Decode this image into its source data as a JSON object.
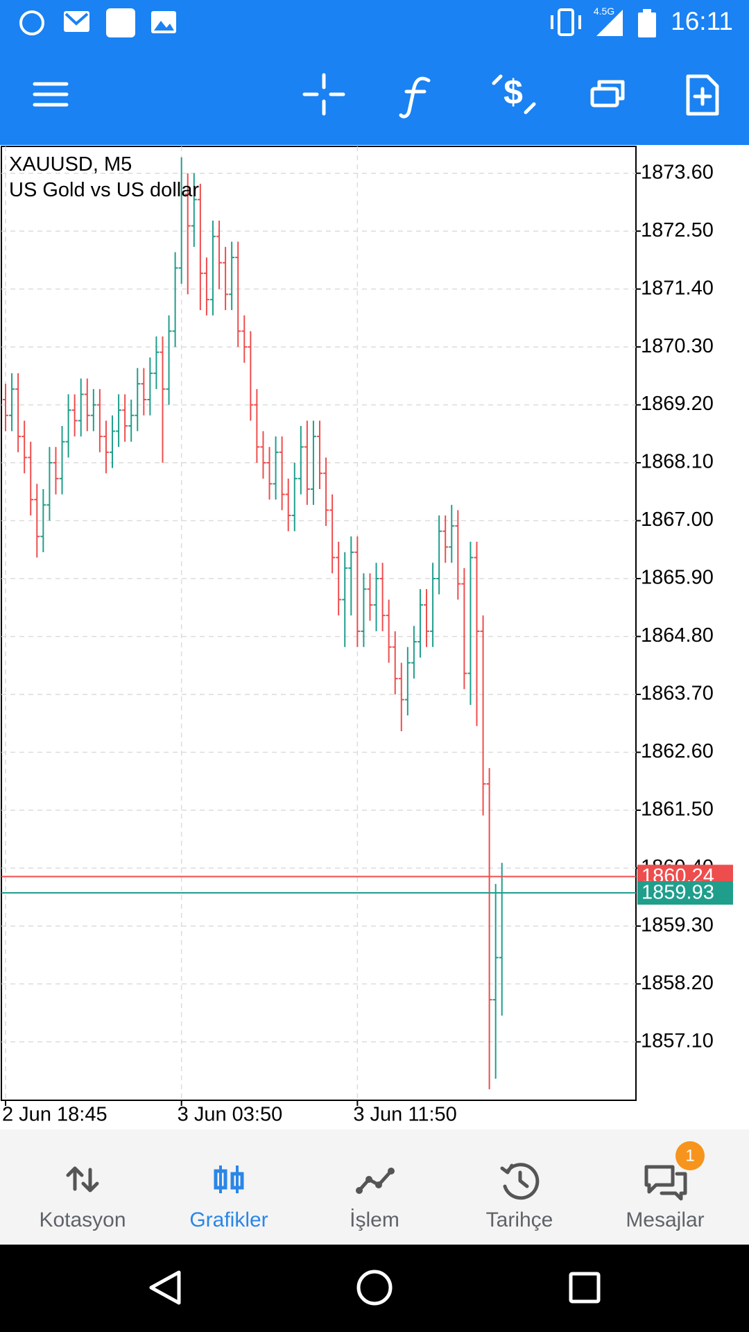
{
  "status_bar": {
    "network": "4.5G",
    "time": "16:11"
  },
  "chart_data": {
    "type": "ohlc",
    "title": "XAUUSD, M5",
    "subtitle": "US Gold vs US dollar",
    "categories": [
      "2 Jun 18:45",
      null,
      null,
      null,
      null,
      null,
      null,
      null,
      null,
      null,
      null,
      null,
      null,
      null,
      null,
      null,
      null,
      null,
      null,
      null,
      null,
      null,
      null,
      null,
      null,
      null,
      null,
      null,
      "3 Jun 03:50",
      null,
      null,
      null,
      null,
      null,
      null,
      null,
      null,
      null,
      null,
      null,
      null,
      null,
      null,
      null,
      null,
      null,
      null,
      null,
      null,
      null,
      null,
      null,
      null,
      null,
      null,
      null,
      "3 Jun 11:50",
      null,
      null,
      null,
      null,
      null,
      null,
      null,
      null,
      null,
      null,
      null,
      null,
      null,
      null,
      null,
      null,
      null,
      null,
      null,
      null,
      null,
      null,
      null
    ],
    "open": [
      1869.3,
      1869.0,
      1869.5,
      1868.6,
      1868.2,
      1867.4,
      1866.7,
      1867.3,
      1868.1,
      1867.8,
      1868.5,
      1869.1,
      1868.9,
      1869.4,
      1869.0,
      1869.2,
      1868.6,
      1868.3,
      1868.7,
      1869.1,
      1868.8,
      1869.0,
      1869.6,
      1869.3,
      1869.8,
      1870.2,
      1869.5,
      1870.6,
      1871.8,
      1873.2,
      1872.6,
      1873.1,
      1871.7,
      1871.2,
      1872.4,
      1871.9,
      1871.3,
      1872.0,
      1870.6,
      1870.3,
      1869.2,
      1868.4,
      1868.1,
      1867.7,
      1868.3,
      1867.5,
      1867.1,
      1867.8,
      1868.4,
      1867.6,
      1868.6,
      1867.9,
      1867.2,
      1866.3,
      1865.5,
      1866.1,
      1866.4,
      1864.9,
      1865.7,
      1865.4,
      1865.9,
      1865.2,
      1864.6,
      1864.0,
      1863.6,
      1864.3,
      1864.7,
      1865.4,
      1864.9,
      1865.9,
      1866.8,
      1866.5,
      1866.9,
      1865.8,
      1864.1,
      1866.3,
      1864.9,
      1862.0,
      1857.9,
      1858.7
    ],
    "high": [
      1869.6,
      1869.8,
      1869.8,
      1868.9,
      1868.5,
      1867.7,
      1867.6,
      1868.4,
      1868.4,
      1868.8,
      1869.4,
      1869.4,
      1869.7,
      1869.7,
      1869.5,
      1869.5,
      1868.9,
      1869.0,
      1869.4,
      1869.4,
      1869.3,
      1869.9,
      1869.9,
      1870.1,
      1870.5,
      1870.5,
      1870.9,
      1872.1,
      1873.9,
      1873.6,
      1873.6,
      1873.4,
      1872.0,
      1872.7,
      1872.7,
      1872.2,
      1872.3,
      1872.3,
      1870.9,
      1870.6,
      1869.5,
      1868.7,
      1868.4,
      1868.6,
      1868.6,
      1867.8,
      1868.1,
      1868.8,
      1868.9,
      1868.9,
      1868.9,
      1868.2,
      1867.5,
      1866.6,
      1866.4,
      1866.7,
      1866.7,
      1866.0,
      1866.0,
      1866.2,
      1866.2,
      1865.5,
      1864.9,
      1864.3,
      1864.6,
      1865.0,
      1865.7,
      1865.7,
      1866.2,
      1867.1,
      1867.1,
      1867.3,
      1867.2,
      1866.1,
      1866.6,
      1866.6,
      1865.2,
      1862.3,
      1860.1,
      1860.5
    ],
    "low": [
      1868.7,
      1868.7,
      1868.3,
      1867.9,
      1867.1,
      1866.3,
      1866.4,
      1867.0,
      1867.5,
      1867.5,
      1868.2,
      1868.6,
      1868.6,
      1868.7,
      1868.7,
      1868.3,
      1867.9,
      1868.0,
      1868.4,
      1868.5,
      1868.5,
      1868.7,
      1869.0,
      1869.0,
      1869.5,
      1868.1,
      1869.2,
      1870.3,
      1871.5,
      1871.3,
      1872.2,
      1871.0,
      1870.9,
      1870.9,
      1871.4,
      1871.0,
      1871.0,
      1870.3,
      1870.0,
      1868.9,
      1868.1,
      1867.8,
      1867.4,
      1867.4,
      1867.2,
      1866.8,
      1866.8,
      1867.5,
      1867.3,
      1867.3,
      1867.6,
      1866.9,
      1866.0,
      1865.2,
      1864.6,
      1865.2,
      1864.6,
      1864.6,
      1865.1,
      1864.9,
      1864.9,
      1864.3,
      1863.7,
      1863.0,
      1863.3,
      1864.0,
      1864.4,
      1864.6,
      1864.6,
      1865.6,
      1866.2,
      1866.2,
      1865.5,
      1863.8,
      1863.5,
      1863.1,
      1861.4,
      1856.2,
      1856.4,
      1857.6
    ],
    "close": [
      1869.0,
      1869.5,
      1868.6,
      1868.2,
      1867.4,
      1866.7,
      1867.3,
      1868.1,
      1867.8,
      1868.5,
      1869.1,
      1868.9,
      1869.4,
      1869.0,
      1869.2,
      1868.6,
      1868.3,
      1868.7,
      1869.1,
      1868.8,
      1869.0,
      1869.6,
      1869.3,
      1869.8,
      1870.2,
      1869.5,
      1870.6,
      1871.8,
      1873.2,
      1872.6,
      1873.1,
      1871.7,
      1871.2,
      1872.4,
      1871.9,
      1871.3,
      1872.0,
      1870.6,
      1870.3,
      1869.2,
      1868.4,
      1868.1,
      1867.7,
      1868.3,
      1867.5,
      1867.1,
      1867.8,
      1868.4,
      1867.6,
      1868.6,
      1867.9,
      1867.2,
      1866.3,
      1865.5,
      1866.1,
      1866.4,
      1864.9,
      1865.7,
      1865.4,
      1865.9,
      1865.2,
      1864.6,
      1864.0,
      1863.6,
      1864.3,
      1864.7,
      1865.4,
      1864.9,
      1865.9,
      1866.8,
      1866.5,
      1866.9,
      1865.8,
      1864.1,
      1866.3,
      1864.9,
      1862.0,
      1857.9,
      1858.7,
      1859.93
    ],
    "up_color": "#1f9e8c",
    "down_color": "#ee4d4d",
    "ylim": [
      1855.99,
      1874.11
    ],
    "yticks": [
      {
        "value": 1873.6,
        "label": "1873.60"
      },
      {
        "value": 1872.5,
        "label": "1872.50"
      },
      {
        "value": 1871.4,
        "label": "1871.40"
      },
      {
        "value": 1870.3,
        "label": "1870.30"
      },
      {
        "value": 1869.2,
        "label": "1869.20"
      },
      {
        "value": 1868.1,
        "label": "1868.10"
      },
      {
        "value": 1867,
        "label": "1867.00"
      },
      {
        "value": 1865.9,
        "label": "1865.90"
      },
      {
        "value": 1864.8,
        "label": "1864.80"
      },
      {
        "value": 1863.7,
        "label": "1863.70"
      },
      {
        "value": 1862.6,
        "label": "1862.60"
      },
      {
        "value": 1861.5,
        "label": "1861.50"
      },
      {
        "value": 1860.4,
        "label": "1860.40"
      },
      {
        "value": 1859.3,
        "label": "1859.30"
      },
      {
        "value": 1858.2,
        "label": "1858.20"
      },
      {
        "value": 1857.1,
        "label": "1857.10"
      }
    ],
    "grid": true,
    "ask_line": {
      "value": 1860.24,
      "color": "#ee4d4d"
    },
    "bid_line": {
      "value": 1859.93,
      "color": "#1f9e8c"
    }
  },
  "bottom_nav": {
    "tabs": [
      "Kotasyon",
      "Grafikler",
      "İşlem",
      "Tarihçe",
      "Mesajlar"
    ],
    "badge": 1
  }
}
